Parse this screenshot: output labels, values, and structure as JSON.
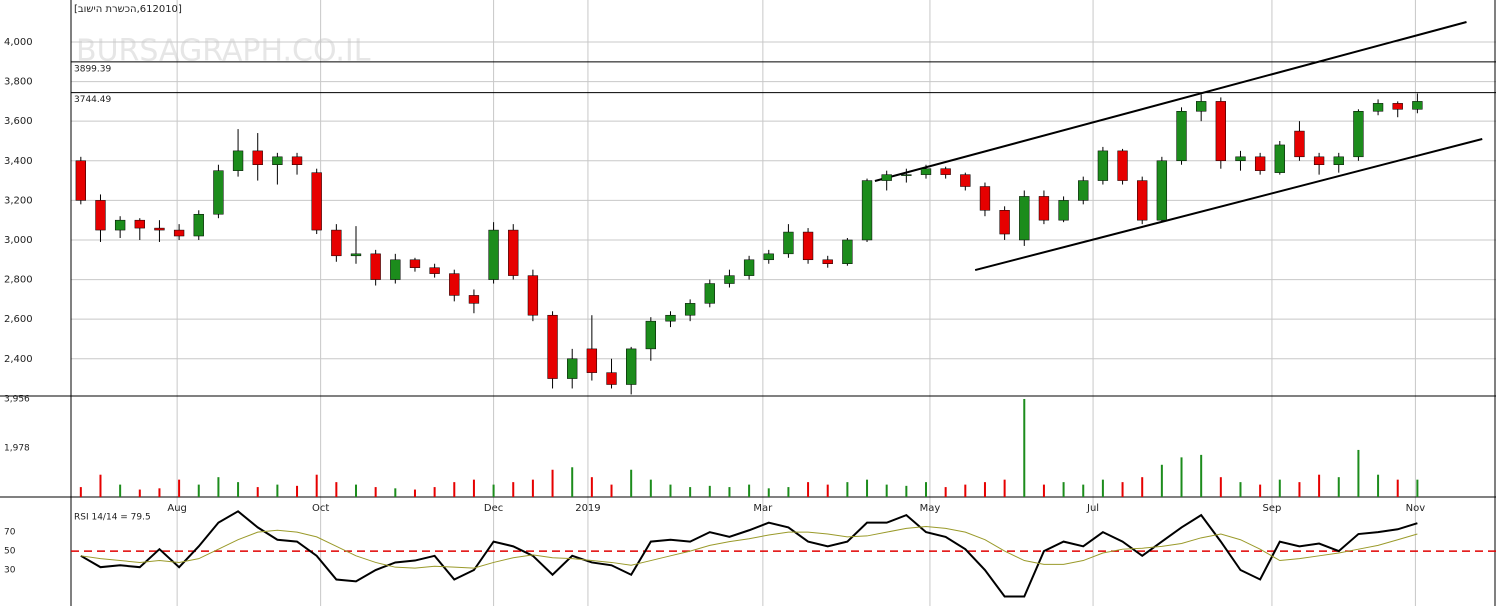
{
  "chart_data": {
    "type": "candlestick",
    "title": "[612010,הכשרת הישוב]",
    "watermark": "BURSAGRAPH.CO.IL",
    "xlim": [
      -0.5,
      72
    ],
    "xticks": [
      {
        "value": 4.9,
        "label": "Aug"
      },
      {
        "value": 12.2,
        "label": "Oct"
      },
      {
        "value": 21.0,
        "label": "Dec"
      },
      {
        "value": 25.8,
        "label": "2019"
      },
      {
        "value": 34.7,
        "label": "Mar"
      },
      {
        "value": 43.2,
        "label": "May"
      },
      {
        "value": 51.5,
        "label": "Jul"
      },
      {
        "value": 60.6,
        "label": "Sep"
      },
      {
        "value": 67.9,
        "label": "Nov"
      }
    ],
    "ylim": [
      2212,
      4212
    ],
    "yticks": [
      {
        "value": 2400,
        "label": "2,400"
      },
      {
        "value": 2600,
        "label": "2,600"
      },
      {
        "value": 2800,
        "label": "2,800"
      },
      {
        "value": 3000,
        "label": "3,000"
      },
      {
        "value": 3200,
        "label": "3,200"
      },
      {
        "value": 3400,
        "label": "3,400"
      },
      {
        "value": 3600,
        "label": "3,600"
      },
      {
        "value": 3800,
        "label": "3,800"
      },
      {
        "value": 4000,
        "label": "4,000"
      }
    ],
    "grid": true,
    "up_color": "#1c8c1c",
    "down_color": "#e60000",
    "levels": [
      3899.39,
      3744.49
    ],
    "trendlines": [
      {
        "x": [
          40.4,
          70.5
        ],
        "y": [
          3298,
          4101
        ]
      },
      {
        "x": [
          45.5,
          71.3
        ],
        "y": [
          2848,
          3510
        ]
      }
    ],
    "open": [
      3400,
      3200,
      3050,
      3100,
      3060,
      3050,
      3020,
      3130,
      3350,
      3450,
      3380,
      3420,
      3340,
      3050,
      2920,
      2930,
      2800,
      2900,
      2860,
      2830,
      2720,
      2800,
      3050,
      2820,
      2620,
      2300,
      2450,
      2330,
      2270,
      2450,
      2590,
      2620,
      2680,
      2780,
      2820,
      2900,
      2930,
      3040,
      2900,
      2880,
      3000,
      3300,
      3330,
      3330,
      3360,
      3330,
      3270,
      3150,
      3000,
      3220,
      3100,
      3200,
      3300,
      3450,
      3300,
      3100,
      3400,
      3650,
      3700,
      3400,
      3420,
      3340,
      3550,
      3420,
      3380,
      3420,
      3650,
      3690,
      3660
    ],
    "high": [
      3420,
      3230,
      3120,
      3110,
      3100,
      3080,
      3150,
      3380,
      3560,
      3540,
      3440,
      3440,
      3360,
      3080,
      3070,
      2950,
      2930,
      2910,
      2880,
      2850,
      2750,
      3090,
      3080,
      2850,
      2640,
      2450,
      2620,
      2400,
      2460,
      2610,
      2640,
      2700,
      2800,
      2850,
      2920,
      2950,
      3080,
      3060,
      2920,
      3010,
      3310,
      3350,
      3360,
      3380,
      3370,
      3340,
      3290,
      3170,
      3250,
      3250,
      3220,
      3320,
      3470,
      3460,
      3320,
      3420,
      3670,
      3735,
      3720,
      3450,
      3440,
      3500,
      3600,
      3440,
      3440,
      3660,
      3710,
      3700,
      3740
    ],
    "low": [
      3180,
      2990,
      3010,
      3000,
      2990,
      3000,
      3000,
      3110,
      3320,
      3300,
      3280,
      3330,
      3030,
      2890,
      2880,
      2770,
      2780,
      2840,
      2810,
      2690,
      2630,
      2780,
      2800,
      2590,
      2250,
      2250,
      2290,
      2250,
      2220,
      2390,
      2560,
      2590,
      2660,
      2760,
      2800,
      2880,
      2910,
      2880,
      2860,
      2870,
      2990,
      3250,
      3290,
      3310,
      3310,
      3250,
      3120,
      3000,
      2970,
      3080,
      3090,
      3180,
      3280,
      3280,
      3080,
      3090,
      3380,
      3600,
      3360,
      3350,
      3330,
      3330,
      3400,
      3330,
      3340,
      3400,
      3630,
      3620,
      3640
    ],
    "close": [
      3200,
      3050,
      3100,
      3060,
      3050,
      3020,
      3130,
      3350,
      3450,
      3380,
      3420,
      3380,
      3050,
      2920,
      2930,
      2800,
      2900,
      2860,
      2830,
      2720,
      2680,
      3050,
      2820,
      2620,
      2300,
      2400,
      2330,
      2270,
      2450,
      2590,
      2620,
      2680,
      2780,
      2820,
      2900,
      2930,
      3040,
      2900,
      2880,
      3000,
      3300,
      3330,
      3330,
      3360,
      3330,
      3270,
      3150,
      3030,
      3220,
      3100,
      3200,
      3300,
      3450,
      3300,
      3100,
      3400,
      3650,
      3700,
      3400,
      3420,
      3350,
      3480,
      3420,
      3380,
      3420,
      3650,
      3690,
      3660,
      3700
    ],
    "volume": {
      "ylim": [
        0,
        4036
      ],
      "yticks": [
        {
          "value": 1978,
          "label": "1,978"
        },
        {
          "value": 3956,
          "label": "3,956"
        }
      ],
      "values": [
        400,
        900,
        500,
        300,
        350,
        700,
        500,
        800,
        600,
        400,
        500,
        450,
        900,
        600,
        500,
        400,
        350,
        300,
        400,
        600,
        700,
        500,
        600,
        700,
        1100,
        1200,
        800,
        500,
        1100,
        700,
        500,
        400,
        450,
        400,
        500,
        350,
        400,
        600,
        500,
        600,
        700,
        500,
        450,
        600,
        400,
        500,
        600,
        700,
        3956,
        500,
        600,
        500,
        700,
        600,
        800,
        1300,
        1600,
        1700,
        800,
        600,
        500,
        700,
        600,
        900,
        800,
        1900,
        900,
        700,
        700
      ]
    },
    "rsi": {
      "label": "RSI 14/14 = 79.5",
      "ylim": [
        -8,
        105
      ],
      "yticks": [
        30,
        50,
        70
      ],
      "ref_line": 50,
      "ref_color": "#e00000",
      "series": [
        {
          "color": "#000000",
          "values": [
            45,
            33,
            35,
            33,
            52,
            33,
            55,
            80,
            92,
            75,
            62,
            60,
            45,
            20,
            18,
            30,
            38,
            40,
            45,
            20,
            30,
            60,
            55,
            45,
            25,
            45,
            38,
            35,
            25,
            60,
            62,
            60,
            70,
            65,
            72,
            80,
            75,
            60,
            55,
            60,
            80,
            80,
            88,
            70,
            65,
            52,
            30,
            2,
            2,
            50,
            60,
            55,
            70,
            60,
            45,
            60,
            75,
            88,
            60,
            30,
            20,
            60,
            55,
            58,
            50,
            68,
            70,
            73,
            79.5
          ]
        },
        {
          "color": "#9a9a2a",
          "values": [
            45,
            42,
            40,
            38,
            40,
            38,
            42,
            52,
            62,
            70,
            72,
            70,
            65,
            55,
            45,
            38,
            33,
            32,
            34,
            33,
            32,
            38,
            43,
            46,
            43,
            42,
            40,
            38,
            35,
            40,
            45,
            50,
            56,
            60,
            63,
            67,
            70,
            70,
            68,
            65,
            66,
            70,
            74,
            76,
            74,
            70,
            62,
            50,
            40,
            36,
            36,
            40,
            48,
            52,
            53,
            55,
            58,
            64,
            68,
            62,
            52,
            40,
            42,
            45,
            48,
            52,
            56,
            62,
            68
          ]
        }
      ]
    }
  }
}
